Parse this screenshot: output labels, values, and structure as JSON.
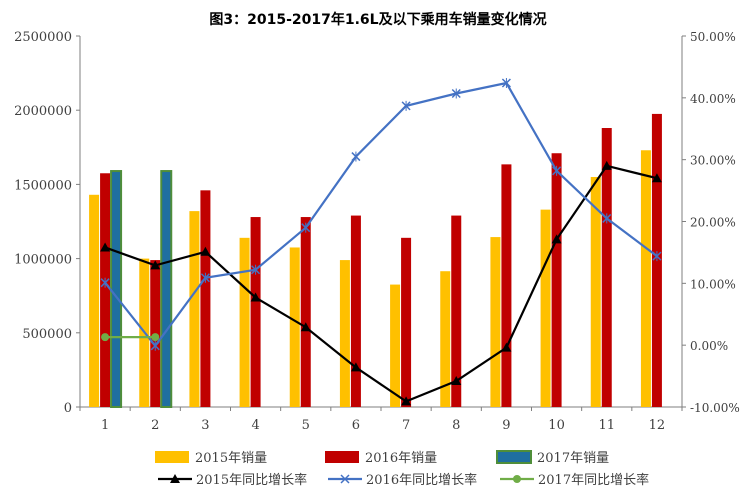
{
  "chart_data": {
    "type": "bar",
    "title": "图3：2015-2017年1.6L及以下乘用车销量变化情况",
    "categories": [
      "1",
      "2",
      "3",
      "4",
      "5",
      "6",
      "7",
      "8",
      "9",
      "10",
      "11",
      "12"
    ],
    "bar_series": [
      {
        "name": "2015年销量",
        "color": "#FFC000",
        "values": [
          1430000,
          1000000,
          1320000,
          1140000,
          1075000,
          990000,
          825000,
          915000,
          1145000,
          1330000,
          1550000,
          1730000
        ]
      },
      {
        "name": "2016年销量",
        "color": "#C00000",
        "values": [
          1575000,
          990000,
          1460000,
          1280000,
          1280000,
          1290000,
          1140000,
          1290000,
          1635000,
          1710000,
          1880000,
          1975000
        ]
      },
      {
        "name": "2017年销量",
        "color": "#1F6FA0",
        "values": [
          1590000,
          1590000,
          null,
          null,
          null,
          null,
          null,
          null,
          null,
          null,
          null,
          null
        ]
      }
    ],
    "line_series": [
      {
        "name": "2015年同比增长率",
        "color": "#000000",
        "marker": "triangle",
        "values": [
          15.8,
          12.9,
          15.1,
          7.7,
          2.9,
          -3.6,
          -9.1,
          -5.8,
          -0.4,
          17.1,
          29.0,
          27.0
        ]
      },
      {
        "name": "2016年同比增长率",
        "color": "#4472C4",
        "marker": "x",
        "values": [
          10.1,
          -0.1,
          10.9,
          12.2,
          19.0,
          30.5,
          38.7,
          40.7,
          42.4,
          28.2,
          20.5,
          14.4
        ]
      },
      {
        "name": "2017年同比增长率",
        "color": "#70AD47",
        "marker": "circle",
        "values": [
          1.3,
          1.3,
          null,
          null,
          null,
          null,
          null,
          null,
          null,
          null,
          null,
          null
        ]
      }
    ],
    "y_left": {
      "min": 0,
      "max": 2500000,
      "ticks": [
        "0",
        "500000",
        "1000000",
        "1500000",
        "2000000",
        "2500000"
      ]
    },
    "y_right": {
      "min": -10,
      "max": 50,
      "ticks": [
        "-10.00%",
        "0.00%",
        "10.00%",
        "20.00%",
        "30.00%",
        "40.00%",
        "50.00%"
      ]
    },
    "legend_position": "bottom",
    "grid": false
  }
}
